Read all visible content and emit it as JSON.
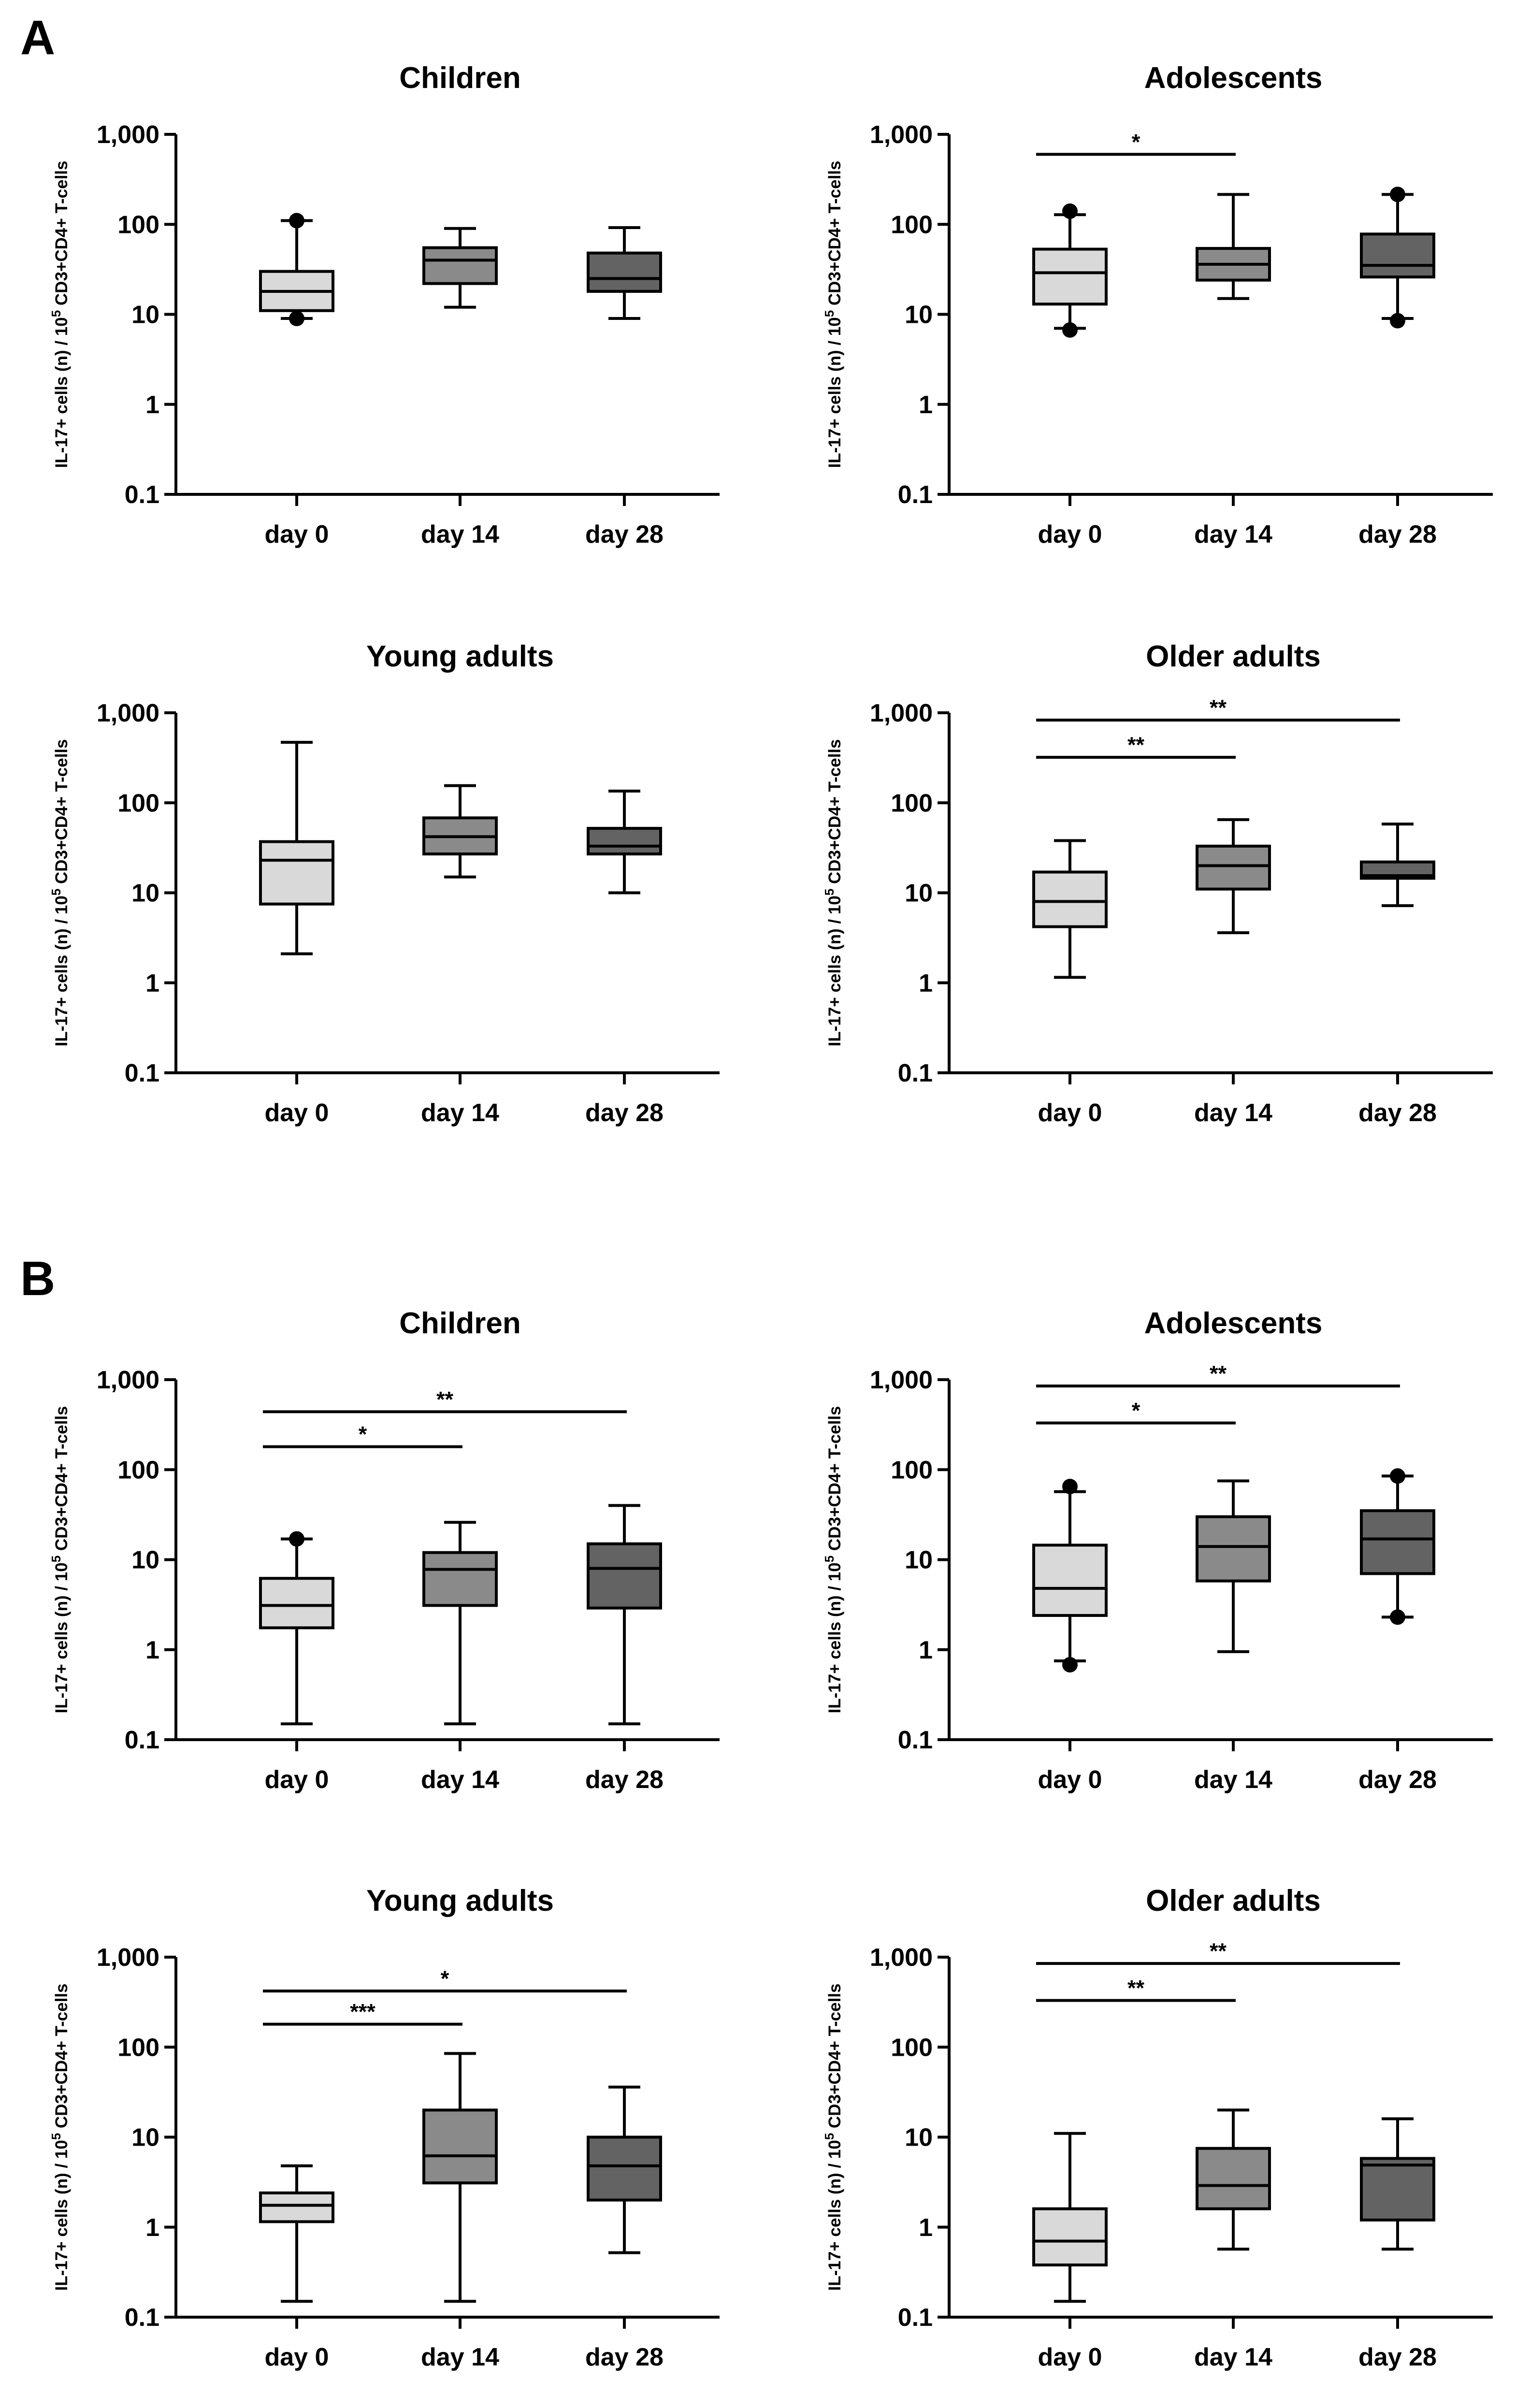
{
  "figure": {
    "panels": [
      {
        "letter": "A"
      },
      {
        "letter": "B"
      }
    ]
  },
  "styles": {
    "box_colors": [
      "#d9d9d9",
      "#8a8a8a",
      "#636363"
    ],
    "stroke": "#000000"
  },
  "chart_data": [
    {
      "panel": "A",
      "type": "box",
      "title": "Children",
      "categories": [
        "day 0",
        "day 14",
        "day 28"
      ],
      "yscale": "log",
      "ylim": [
        0.1,
        1000
      ],
      "yticks": [
        0.1,
        1,
        10,
        100,
        1000
      ],
      "ytick_labels": [
        "0.1",
        "1",
        "10",
        "100",
        "1,000"
      ],
      "ylabel_main": "IL-17+ cells (n) / 10",
      "ylabel_sup": "5",
      "ylabel_tail": " CD3+CD4+ T-cells",
      "boxes": [
        {
          "whisker_low": 9,
          "q1": 11,
          "median": 18,
          "q3": 30,
          "whisker_high": 110,
          "outliers": [
            9,
            110
          ]
        },
        {
          "whisker_low": 12,
          "q1": 22,
          "median": 40,
          "q3": 55,
          "whisker_high": 90,
          "outliers": []
        },
        {
          "whisker_low": 9,
          "q1": 18,
          "median": 25,
          "q3": 48,
          "whisker_high": 92,
          "outliers": []
        }
      ],
      "significance": []
    },
    {
      "panel": "A",
      "type": "box",
      "title": "Adolescents",
      "categories": [
        "day 0",
        "day 14",
        "day 28"
      ],
      "yscale": "log",
      "ylim": [
        0.1,
        1000
      ],
      "yticks": [
        0.1,
        1,
        10,
        100,
        1000
      ],
      "ytick_labels": [
        "0.1",
        "1",
        "10",
        "100",
        "1,000"
      ],
      "ylabel_main": "IL-17+ cells (n) / 10",
      "ylabel_sup": "5",
      "ylabel_tail": " CD3+CD4+ T-cells",
      "boxes": [
        {
          "whisker_low": 7,
          "q1": 13,
          "median": 29,
          "q3": 53,
          "whisker_high": 128,
          "outliers": [
            6.7,
            140
          ]
        },
        {
          "whisker_low": 15,
          "q1": 24,
          "median": 36,
          "q3": 54,
          "whisker_high": 215,
          "outliers": []
        },
        {
          "whisker_low": 9,
          "q1": 26,
          "median": 35,
          "q3": 78,
          "whisker_high": 215,
          "outliers": [
            8.5,
            215
          ]
        }
      ],
      "significance": [
        {
          "from": 0,
          "to": 1,
          "label": "*",
          "y": 600
        }
      ]
    },
    {
      "panel": "A",
      "type": "box",
      "title": "Young adults",
      "categories": [
        "day 0",
        "day 14",
        "day 28"
      ],
      "yscale": "log",
      "ylim": [
        0.1,
        1000
      ],
      "yticks": [
        0.1,
        1,
        10,
        100,
        1000
      ],
      "ytick_labels": [
        "0.1",
        "1",
        "10",
        "100",
        "1,000"
      ],
      "ylabel_main": "IL-17+ cells (n) / 10",
      "ylabel_sup": "5",
      "ylabel_tail": " CD3+CD4+ T-cells",
      "boxes": [
        {
          "whisker_low": 2.1,
          "q1": 7.5,
          "median": 23,
          "q3": 37,
          "whisker_high": 470,
          "outliers": []
        },
        {
          "whisker_low": 15,
          "q1": 27,
          "median": 42,
          "q3": 68,
          "whisker_high": 155,
          "outliers": []
        },
        {
          "whisker_low": 10,
          "q1": 27,
          "median": 33,
          "q3": 52,
          "whisker_high": 135,
          "outliers": []
        }
      ],
      "significance": []
    },
    {
      "panel": "A",
      "type": "box",
      "title": "Older adults",
      "categories": [
        "day 0",
        "day 14",
        "day 28"
      ],
      "yscale": "log",
      "ylim": [
        0.1,
        1000
      ],
      "yticks": [
        0.1,
        1,
        10,
        100,
        1000
      ],
      "ytick_labels": [
        "0.1",
        "1",
        "10",
        "100",
        "1,000"
      ],
      "ylabel_main": "IL-17+ cells (n) / 10",
      "ylabel_sup": "5",
      "ylabel_tail": " CD3+CD4+ T-cells",
      "boxes": [
        {
          "whisker_low": 1.15,
          "q1": 4.2,
          "median": 8,
          "q3": 17,
          "whisker_high": 38,
          "outliers": []
        },
        {
          "whisker_low": 3.6,
          "q1": 11,
          "median": 20,
          "q3": 33,
          "whisker_high": 65,
          "outliers": []
        },
        {
          "whisker_low": 7.2,
          "q1": 14.5,
          "median": 15.5,
          "q3": 22,
          "whisker_high": 58,
          "outliers": []
        }
      ],
      "significance": [
        {
          "from": 0,
          "to": 1,
          "label": "**",
          "y": 320
        },
        {
          "from": 0,
          "to": 2,
          "label": "**",
          "y": 830
        }
      ]
    },
    {
      "panel": "B",
      "type": "box",
      "title": "Children",
      "categories": [
        "day 0",
        "day 14",
        "day 28"
      ],
      "yscale": "log",
      "ylim": [
        0.1,
        1000
      ],
      "yticks": [
        0.1,
        1,
        10,
        100,
        1000
      ],
      "ytick_labels": [
        "0.1",
        "1",
        "10",
        "100",
        "1,000"
      ],
      "ylabel_main": "IL-17+ cells (n) / 10",
      "ylabel_sup": "5",
      "ylabel_tail": " CD3+CD4+ T-cells",
      "boxes": [
        {
          "whisker_low": 0.15,
          "q1": 1.75,
          "median": 3.1,
          "q3": 6.2,
          "whisker_high": 17,
          "outliers": [
            17
          ]
        },
        {
          "whisker_low": 0.15,
          "q1": 3.1,
          "median": 7.8,
          "q3": 12,
          "whisker_high": 26,
          "outliers": []
        },
        {
          "whisker_low": 0.15,
          "q1": 2.9,
          "median": 8,
          "q3": 15,
          "whisker_high": 40,
          "outliers": []
        }
      ],
      "significance": [
        {
          "from": 0,
          "to": 1,
          "label": "*",
          "y": 180
        },
        {
          "from": 0,
          "to": 2,
          "label": "**",
          "y": 440
        }
      ]
    },
    {
      "panel": "B",
      "type": "box",
      "title": "Adolescents",
      "categories": [
        "day 0",
        "day 14",
        "day 28"
      ],
      "yscale": "log",
      "ylim": [
        0.1,
        1000
      ],
      "yticks": [
        0.1,
        1,
        10,
        100,
        1000
      ],
      "ytick_labels": [
        "0.1",
        "1",
        "10",
        "100",
        "1,000"
      ],
      "ylabel_main": "IL-17+ cells (n) / 10",
      "ylabel_sup": "5",
      "ylabel_tail": " CD3+CD4+ T-cells",
      "boxes": [
        {
          "whisker_low": 0.75,
          "q1": 2.4,
          "median": 4.8,
          "q3": 14.5,
          "whisker_high": 57,
          "outliers": [
            0.68,
            65
          ]
        },
        {
          "whisker_low": 0.95,
          "q1": 5.8,
          "median": 14,
          "q3": 30,
          "whisker_high": 75,
          "outliers": []
        },
        {
          "whisker_low": 2.3,
          "q1": 7,
          "median": 17,
          "q3": 35,
          "whisker_high": 85,
          "outliers": [
            2.3,
            85
          ]
        }
      ],
      "significance": [
        {
          "from": 0,
          "to": 1,
          "label": "*",
          "y": 330
        },
        {
          "from": 0,
          "to": 2,
          "label": "**",
          "y": 850
        }
      ]
    },
    {
      "panel": "B",
      "type": "box",
      "title": "Young adults",
      "categories": [
        "day 0",
        "day 14",
        "day 28"
      ],
      "yscale": "log",
      "ylim": [
        0.1,
        1000
      ],
      "yticks": [
        0.1,
        1,
        10,
        100,
        1000
      ],
      "ytick_labels": [
        "0.1",
        "1",
        "10",
        "100",
        "1,000"
      ],
      "ylabel_main": "IL-17+ cells (n) / 10",
      "ylabel_sup": "5",
      "ylabel_tail": " CD3+CD4+ T-cells",
      "boxes": [
        {
          "whisker_low": 0.15,
          "q1": 1.15,
          "median": 1.75,
          "q3": 2.4,
          "whisker_high": 4.8,
          "outliers": []
        },
        {
          "whisker_low": 0.15,
          "q1": 3.1,
          "median": 6.2,
          "q3": 20,
          "whisker_high": 85,
          "outliers": []
        },
        {
          "whisker_low": 0.52,
          "q1": 2,
          "median": 4.8,
          "q3": 10,
          "whisker_high": 36,
          "outliers": []
        }
      ],
      "significance": [
        {
          "from": 0,
          "to": 1,
          "label": "***",
          "y": 180
        },
        {
          "from": 0,
          "to": 2,
          "label": "*",
          "y": 420
        }
      ]
    },
    {
      "panel": "B",
      "type": "box",
      "title": "Older adults",
      "categories": [
        "day 0",
        "day 14",
        "day 28"
      ],
      "yscale": "log",
      "ylim": [
        0.1,
        1000
      ],
      "yticks": [
        0.1,
        1,
        10,
        100,
        1000
      ],
      "ytick_labels": [
        "0.1",
        "1",
        "10",
        "100",
        "1,000"
      ],
      "ylabel_main": "IL-17+ cells (n) / 10",
      "ylabel_sup": "5",
      "ylabel_tail": " CD3+CD4+ T-cells",
      "boxes": [
        {
          "whisker_low": 0.15,
          "q1": 0.38,
          "median": 0.7,
          "q3": 1.6,
          "whisker_high": 11,
          "outliers": []
        },
        {
          "whisker_low": 0.57,
          "q1": 1.6,
          "median": 2.9,
          "q3": 7.5,
          "whisker_high": 20,
          "outliers": []
        },
        {
          "whisker_low": 0.57,
          "q1": 1.2,
          "median": 4.9,
          "q3": 5.8,
          "whisker_high": 16,
          "outliers": []
        }
      ],
      "significance": [
        {
          "from": 0,
          "to": 1,
          "label": "**",
          "y": 330
        },
        {
          "from": 0,
          "to": 2,
          "label": "**",
          "y": 850
        }
      ]
    }
  ]
}
